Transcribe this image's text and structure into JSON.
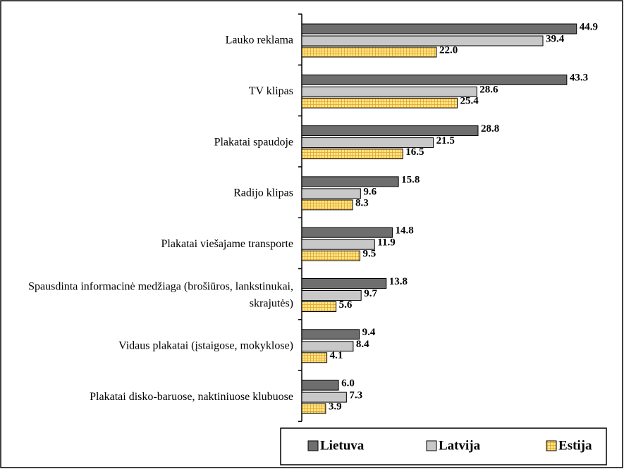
{
  "chart_data": {
    "type": "bar",
    "orientation": "horizontal",
    "categories": [
      "Lauko reklama",
      "TV klipas",
      "Plakatai spaudoje",
      "Radijo klipas",
      "Plakatai viešajame transporte",
      "Spausdinta informacinė medžiaga (brošiūros, lankstinukai, skrajutės)",
      "Vidaus plakatai (įstaigose, mokyklose)",
      "Plakatai disko-baruose, naktiniuose klubuose"
    ],
    "series": [
      {
        "name": "Lietuva",
        "color": "#6e6e6e",
        "values": [
          44.9,
          43.3,
          28.8,
          15.8,
          14.8,
          13.8,
          9.4,
          6.0
        ],
        "value_labels": [
          "44.9",
          "43.3",
          "28.8",
          "15.8",
          "14.8",
          "13.8",
          "9.4",
          "6.0"
        ]
      },
      {
        "name": "Latvija",
        "color": "#c8c8c8",
        "values": [
          39.4,
          28.6,
          21.5,
          9.6,
          11.9,
          9.7,
          8.4,
          7.3
        ],
        "value_labels": [
          "39.4",
          "28.6",
          "21.5",
          "9.6",
          "11.9",
          "9.7",
          "8.4",
          "7.3"
        ]
      },
      {
        "name": "Estija",
        "color": "#ffe680",
        "values": [
          22.0,
          25.4,
          16.5,
          8.3,
          9.5,
          5.6,
          4.1,
          3.9
        ],
        "value_labels": [
          "22.0",
          "25.4",
          "16.5",
          "8.3",
          "9.5",
          "5.6",
          "4.1",
          "3.9"
        ]
      }
    ],
    "xlim": [
      0,
      50
    ],
    "legend": "bottom-right"
  }
}
